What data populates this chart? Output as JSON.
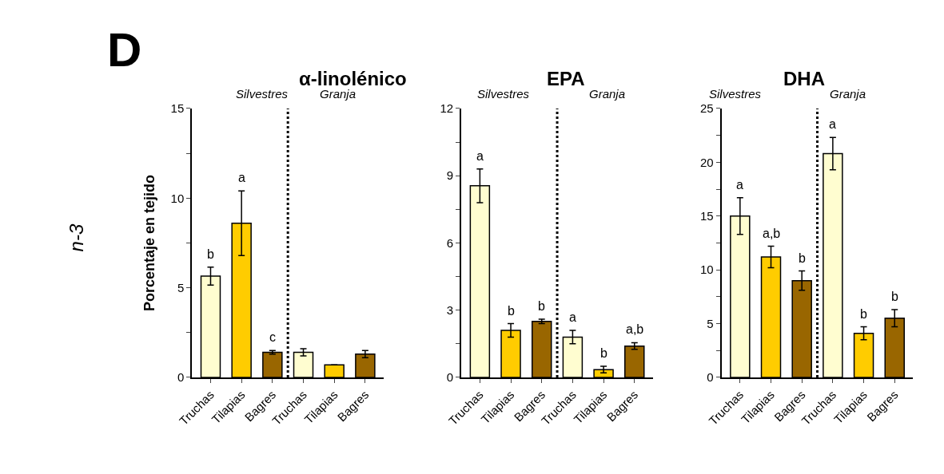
{
  "chart_data": [
    {
      "type": "bar",
      "title": "α-linolénico",
      "ylabel": "Porcentaje en tejido",
      "categories": [
        "Truchas",
        "Tilapias",
        "Bagres",
        "Truchas",
        "Tilapias",
        "Bagres"
      ],
      "values": [
        5.65,
        8.6,
        1.4,
        1.4,
        0.7,
        1.3
      ],
      "errors": [
        0.5,
        1.8,
        0.1,
        0.2,
        null,
        0.2
      ],
      "colors": [
        "#fffdd0",
        "#ffcc00",
        "#996600",
        "#fffdd0",
        "#ffcc00",
        "#996600"
      ],
      "value_labels": [
        "b",
        "a",
        "c",
        null,
        null,
        null
      ],
      "ylim": [
        0,
        15
      ],
      "yticks": [
        0,
        {
          "value": 2.5,
          "label": null
        },
        5,
        {
          "value": 7.5,
          "label": null
        },
        10,
        {
          "value": 12.5,
          "label": null
        },
        15
      ],
      "annotations": [
        "Silvestres",
        "Granja",
        "D",
        "n-3"
      ]
    },
    {
      "type": "bar",
      "title": "EPA",
      "categories": [
        "Truchas",
        "Tilapias",
        "Bagres",
        "Truchas",
        "Tilapias",
        "Bagres"
      ],
      "values": [
        8.55,
        2.1,
        2.5,
        1.8,
        0.35,
        1.4
      ],
      "errors": [
        0.75,
        0.3,
        0.1,
        0.3,
        0.15,
        0.15
      ],
      "colors": [
        "#fffdd0",
        "#ffcc00",
        "#996600",
        "#fffdd0",
        "#ffcc00",
        "#996600"
      ],
      "value_labels": [
        "a",
        "b",
        "b",
        "a",
        "b",
        "a,b"
      ],
      "ylim": [
        0,
        12
      ],
      "yticks": [
        0,
        {
          "value": 1.5,
          "label": null
        },
        3,
        {
          "value": 4.5,
          "label": null
        },
        6,
        {
          "value": 7.5,
          "label": null
        },
        9,
        {
          "value": 10.5,
          "label": null
        },
        12
      ],
      "annotations": [
        "Silvestres",
        "Granja"
      ]
    },
    {
      "type": "bar",
      "title": "DHA",
      "categories": [
        "Truchas",
        "Tilapias",
        "Bagres",
        "Truchas",
        "Tilapias",
        "Bagres"
      ],
      "values": [
        15,
        11.2,
        9,
        20.8,
        4.1,
        5.5
      ],
      "errors": [
        1.7,
        1,
        0.9,
        1.5,
        0.6,
        0.8
      ],
      "colors": [
        "#fffdd0",
        "#ffcc00",
        "#996600",
        "#fffdd0",
        "#ffcc00",
        "#996600"
      ],
      "value_labels": [
        "a",
        "a,b",
        "b",
        "a",
        "b",
        "b"
      ],
      "ylim": [
        0,
        25
      ],
      "yticks": [
        0,
        {
          "value": 2.5,
          "label": null
        },
        5,
        {
          "value": 7.5,
          "label": null
        },
        10,
        {
          "value": 12.5,
          "label": null
        },
        15,
        {
          "value": 17.5,
          "label": null
        },
        20,
        {
          "value": 22.5,
          "label": null
        },
        25
      ],
      "annotations": [
        "Silvestres",
        "Granja"
      ]
    }
  ]
}
